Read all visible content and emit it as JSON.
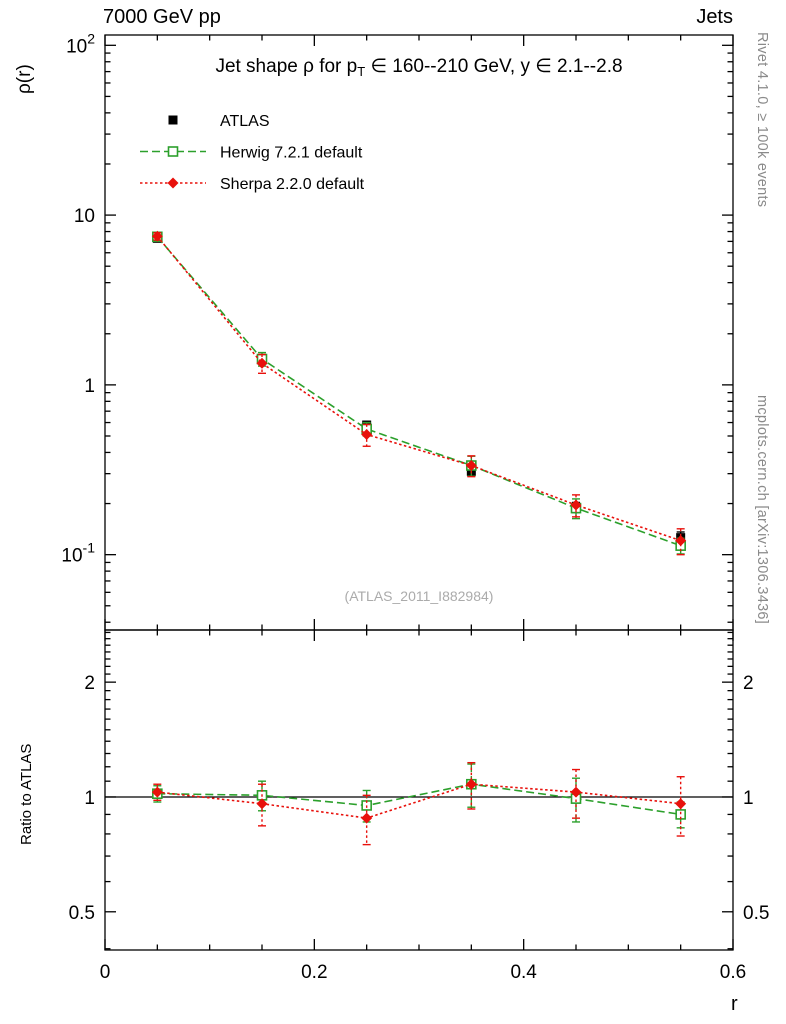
{
  "header": {
    "left": "7000 GeV pp",
    "right": "Jets"
  },
  "side_notes": {
    "top_right": "Rivet 4.1.0, ≥ 100k events",
    "bottom_right": "mcplots.cern.ch [arXiv:1306.3436]"
  },
  "watermark": "(ATLAS_2011_I882984)",
  "chart_data": {
    "type": "line",
    "title_parts": {
      "pre": "Jet shape ρ for p",
      "sub": "T",
      "post": " ∈ 160--210 GeV, y ∈ 2.1--2.8"
    },
    "xlabel": "r",
    "xlim": [
      0,
      0.6
    ],
    "x": [
      0.05,
      0.15,
      0.25,
      0.35,
      0.45,
      0.55
    ],
    "x_major_ticks": [
      0,
      0.2,
      0.4,
      0.6
    ],
    "x_tick_labels": [
      "0",
      "0.2",
      "0.4",
      "0.6"
    ],
    "x_minor_step": 0.05,
    "main_panel": {
      "ylabel": "ρ(r)",
      "yscale": "log",
      "ylim": [
        0.036,
        115
      ],
      "y_major_ticks": [
        {
          "value": 100,
          "label": "10",
          "exp": "2"
        },
        {
          "value": 10,
          "label": "10"
        },
        {
          "value": 1,
          "label": "1"
        },
        {
          "value": 0.1,
          "label": "10",
          "exp": "-1"
        }
      ],
      "series": [
        {
          "name": "ATLAS",
          "marker": "filled-square",
          "line": "none",
          "color": "#000000",
          "values": [
            7.3,
            1.4,
            0.58,
            0.31,
            0.19,
            0.126
          ],
          "errors": [
            0.35,
            0.07,
            0.03,
            0.018,
            0.013,
            0.01
          ]
        },
        {
          "name": "Herwig 7.2.1 default",
          "marker": "open-square",
          "line": "dashed",
          "color": "#2ca02c",
          "values": [
            7.45,
            1.42,
            0.55,
            0.335,
            0.188,
            0.113
          ],
          "errors": [
            0.36,
            0.13,
            0.05,
            0.045,
            0.025,
            0.012
          ]
        },
        {
          "name": "Sherpa 2.2.0 default",
          "marker": "filled-diamond",
          "line": "dotted",
          "color": "#e8110c",
          "values": [
            7.5,
            1.34,
            0.51,
            0.335,
            0.196,
            0.121
          ],
          "errors": [
            0.37,
            0.17,
            0.075,
            0.047,
            0.029,
            0.021
          ]
        }
      ]
    },
    "ratio_panel": {
      "ylabel": "Ratio to ATLAS",
      "yscale": "log",
      "ylim": [
        0.397,
        2.74
      ],
      "reference_line": 1,
      "y_minor_step": 0.1,
      "y_major_ticks": [
        {
          "value": 2,
          "label": "2"
        },
        {
          "value": 1,
          "label": "1"
        },
        {
          "value": 0.5,
          "label": "0.5"
        }
      ],
      "series": [
        {
          "name": "Herwig 7.2.1 default",
          "marker": "open-square",
          "line": "dashed",
          "color": "#2ca02c",
          "values": [
            1.02,
            1.01,
            0.95,
            1.08,
            0.99,
            0.9
          ],
          "errors": [
            0.05,
            0.09,
            0.09,
            0.14,
            0.13,
            0.07
          ]
        },
        {
          "name": "Sherpa 2.2.0 default",
          "marker": "filled-diamond",
          "line": "dotted",
          "color": "#e8110c",
          "values": [
            1.03,
            0.96,
            0.88,
            1.08,
            1.03,
            0.96
          ],
          "errors": [
            0.05,
            0.12,
            0.13,
            0.15,
            0.15,
            0.17
          ]
        }
      ]
    },
    "legend": {
      "position": "top-left"
    }
  }
}
